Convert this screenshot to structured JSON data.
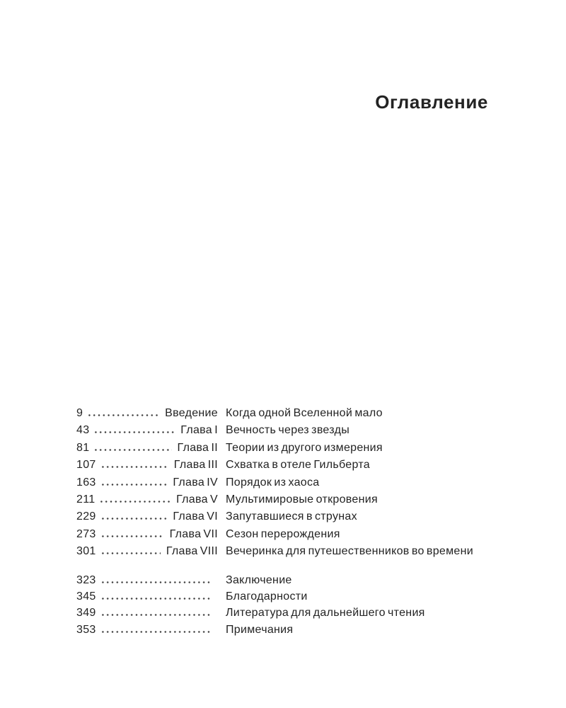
{
  "page": {
    "title": "Оглавление"
  },
  "toc": {
    "chapters": [
      {
        "page": "9",
        "label": "Введение",
        "title": "Когда одной Вселенной мало"
      },
      {
        "page": "43",
        "label": "Глава I",
        "title": "Вечность через звезды"
      },
      {
        "page": "81",
        "label": "Глава II",
        "title": "Теории из другого измерения"
      },
      {
        "page": "107",
        "label": "Глава III",
        "title": "Схватка в отеле Гильберта"
      },
      {
        "page": "163",
        "label": "Глава IV",
        "title": "Порядок из хаоса"
      },
      {
        "page": "211",
        "label": "Глава V",
        "title": "Мультимировые откровения"
      },
      {
        "page": "229",
        "label": "Глава VI",
        "title": "Запутавшиеся в струнах"
      },
      {
        "page": "273",
        "label": "Глава VII",
        "title": "Сезон перерождения"
      },
      {
        "page": "301",
        "label": "Глава VIII",
        "title": "Вечеринка для путешественников во времени"
      }
    ],
    "backmatter": [
      {
        "page": "323",
        "title": "Заключение"
      },
      {
        "page": "345",
        "title": "Благодарности"
      },
      {
        "page": "349",
        "title": "Литература для дальнейшего чтения"
      },
      {
        "page": "353",
        "title": "Примечания"
      }
    ]
  },
  "colors": {
    "text": "#232323",
    "background": "#ffffff"
  }
}
